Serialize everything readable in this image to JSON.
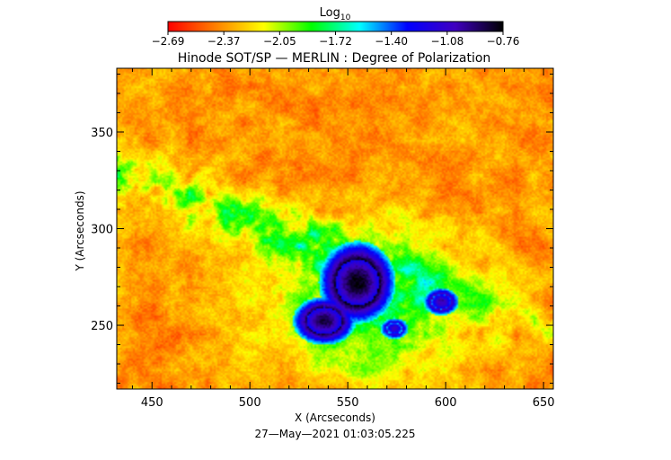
{
  "chart_data": {
    "type": "heatmap",
    "title": "Hinode SOT/SP — MERLIN : Degree of Polarization",
    "xlabel": "X (Arcseconds)",
    "ylabel": "Y (Arcseconds)",
    "footer": "27—May—2021 01:03:05.225",
    "xlim": [
      432,
      655
    ],
    "ylim": [
      217,
      383
    ],
    "x_ticks": [
      "450",
      "500",
      "550",
      "600",
      "650"
    ],
    "y_ticks": [
      "250",
      "300",
      "350"
    ],
    "colorbar": {
      "label_main": "Log",
      "label_sub": "10",
      "ticks": [
        "−2.69",
        "−2.37",
        "−2.05",
        "−1.72",
        "−1.40",
        "−1.08",
        "−0.76"
      ],
      "range": [
        -2.69,
        -0.76
      ],
      "colors": [
        "#ff0000",
        "#ff8000",
        "#ffff00",
        "#00ff00",
        "#00ffff",
        "#0000ff",
        "#4000c0",
        "#000000"
      ]
    },
    "features": [
      {
        "kind": "sunspot",
        "x": 555,
        "y": 272,
        "rx": 11,
        "ry": 12,
        "value": -0.78
      },
      {
        "kind": "sunspot",
        "x": 538,
        "y": 252,
        "rx": 9,
        "ry": 7,
        "value": -0.85
      },
      {
        "kind": "pore",
        "x": 598,
        "y": 262,
        "rx": 5,
        "ry": 4,
        "value": -1.0
      },
      {
        "kind": "pore",
        "x": 574,
        "y": 248,
        "rx": 4,
        "ry": 3,
        "value": -1.1
      }
    ]
  }
}
